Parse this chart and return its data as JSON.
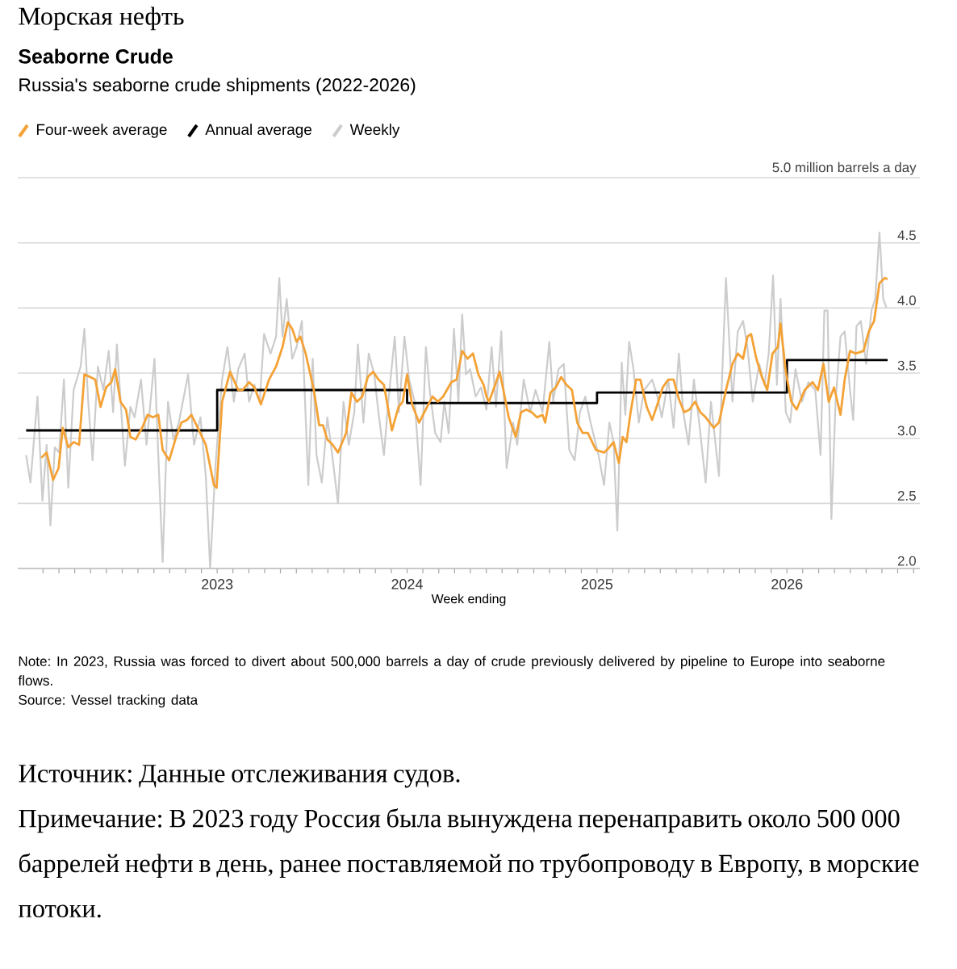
{
  "chart_data": {
    "type": "line",
    "title": "Seaborne Crude",
    "subtitle": "Russia's seaborne crude shipments (2022-2026)",
    "xlabel": "Week ending",
    "annotations": [
      "Морская нефть",
      "Note: In 2023, Russia was forced to divert about 500,000 barrels a day of crude previously delivered by pipeline to Europe into seaborne flows.",
      "Source: Vessel tracking data",
      "Источник: Данные отслеживания судов.",
      "Примечание: В 2023 году Россия была вынуждена перенаправить около 500 000 баррелей нефти в день, ранее поставляемой по трубопроводу в Европу, в морские потоки."
    ],
    "xlim": [
      2021.95,
      2026.7
    ],
    "ylim": [
      2.0,
      5.0
    ],
    "yticks": [
      {
        "value": 2,
        "label": "2.0"
      },
      2.5,
      {
        "value": 3,
        "label": "3.0"
      },
      3.5,
      {
        "value": 4,
        "label": "4.0"
      },
      4.5,
      {
        "value": 5,
        "label": "5.0 million barrels a day"
      }
    ],
    "xticks": [
      {
        "value": 2022.083,
        "label": null
      },
      {
        "value": 2022.167,
        "label": null
      },
      {
        "value": 2022.25,
        "label": null
      },
      {
        "value": 2022.333,
        "label": null
      },
      {
        "value": 2022.417,
        "label": null
      },
      {
        "value": 2022.5,
        "label": null
      },
      {
        "value": 2022.583,
        "label": null
      },
      {
        "value": 2022.667,
        "label": null
      },
      {
        "value": 2022.75,
        "label": null
      },
      {
        "value": 2022.833,
        "label": null
      },
      {
        "value": 2022.917,
        "label": null
      },
      2023,
      {
        "value": 2023.083,
        "label": null
      },
      {
        "value": 2023.167,
        "label": null
      },
      {
        "value": 2023.25,
        "label": null
      },
      {
        "value": 2023.333,
        "label": null
      },
      {
        "value": 2023.417,
        "label": null
      },
      {
        "value": 2023.5,
        "label": null
      },
      {
        "value": 2023.583,
        "label": null
      },
      {
        "value": 2023.667,
        "label": null
      },
      {
        "value": 2023.75,
        "label": null
      },
      {
        "value": 2023.833,
        "label": null
      },
      {
        "value": 2023.917,
        "label": null
      },
      2024,
      {
        "value": 2024.083,
        "label": null
      },
      {
        "value": 2024.167,
        "label": null
      },
      {
        "value": 2024.25,
        "label": null
      },
      {
        "value": 2024.333,
        "label": null
      },
      {
        "value": 2024.417,
        "label": null
      },
      {
        "value": 2024.5,
        "label": null
      },
      {
        "value": 2024.583,
        "label": null
      },
      {
        "value": 2024.667,
        "label": null
      },
      {
        "value": 2024.75,
        "label": null
      },
      {
        "value": 2024.833,
        "label": null
      },
      {
        "value": 2024.917,
        "label": null
      },
      2025,
      {
        "value": 2025.083,
        "label": null
      },
      {
        "value": 2025.167,
        "label": null
      },
      {
        "value": 2025.25,
        "label": null
      },
      {
        "value": 2025.333,
        "label": null
      },
      {
        "value": 2025.417,
        "label": null
      },
      {
        "value": 2025.5,
        "label": null
      },
      {
        "value": 2025.583,
        "label": null
      },
      {
        "value": 2025.667,
        "label": null
      },
      {
        "value": 2025.75,
        "label": null
      },
      {
        "value": 2025.833,
        "label": null
      },
      {
        "value": 2025.917,
        "label": null
      },
      2026,
      {
        "value": 2026.083,
        "label": null
      },
      {
        "value": 2026.167,
        "label": null
      },
      {
        "value": 2026.25,
        "label": null
      },
      {
        "value": 2026.333,
        "label": null
      },
      {
        "value": 2026.417,
        "label": null
      },
      {
        "value": 2026.5,
        "label": null
      },
      {
        "value": 2026.583,
        "label": null
      },
      {
        "value": 2026.667,
        "label": null
      }
    ],
    "grid": "y",
    "legend": "top left",
    "series": [
      {
        "name": "Four-week average",
        "color": "#f4a236",
        "x": [
          2022.074,
          2022.102,
          2022.136,
          2022.165,
          2022.187,
          2022.216,
          2022.244,
          2022.273,
          2022.301,
          2022.33,
          2022.358,
          2022.386,
          2022.415,
          2022.443,
          2022.463,
          2022.491,
          2022.52,
          2022.543,
          2022.571,
          2022.605,
          2022.634,
          2022.662,
          2022.69,
          2022.713,
          2022.747,
          2022.784,
          2022.812,
          2022.841,
          2022.864,
          2022.898,
          2022.94,
          2022.983,
          2022.997,
          2023.026,
          2023.068,
          2023.111,
          2023.134,
          2023.168,
          2023.196,
          2023.23,
          2023.273,
          2023.31,
          2023.344,
          2023.372,
          2023.395,
          2023.418,
          2023.438,
          2023.466,
          2023.509,
          2023.537,
          2023.557,
          2023.58,
          2023.608,
          2023.636,
          2023.679,
          2023.707,
          2023.736,
          2023.764,
          2023.793,
          2023.821,
          2023.849,
          2023.878,
          2023.92,
          2023.955,
          2023.977,
          2024.0,
          2024.026,
          2024.063,
          2024.105,
          2024.134,
          2024.162,
          2024.19,
          2024.233,
          2024.261,
          2024.29,
          2024.318,
          2024.347,
          2024.375,
          2024.403,
          2024.418,
          2024.431,
          2024.459,
          2024.487,
          2024.507,
          2024.535,
          2024.572,
          2024.6,
          2024.628,
          2024.656,
          2024.684,
          2024.713,
          2024.727,
          2024.755,
          2024.783,
          2024.811,
          2024.839,
          2024.868,
          2024.896,
          2024.924,
          2024.952,
          2024.994,
          2025.037,
          2025.065,
          2025.087,
          2025.115,
          2025.135,
          2025.155,
          2025.177,
          2025.206,
          2025.228,
          2025.262,
          2025.29,
          2025.318,
          2025.346,
          2025.375,
          2025.403,
          2025.431,
          2025.459,
          2025.487,
          2025.516,
          2025.544,
          2025.572,
          2025.614,
          2025.642,
          2025.679,
          2025.713,
          2025.741,
          2025.769,
          2025.792,
          2025.811,
          2025.839,
          2025.868,
          2025.896,
          2025.924,
          2025.952,
          2025.966,
          2025.994,
          2026.023,
          2026.051,
          2026.093,
          2026.135,
          2026.163,
          2026.192,
          2026.22,
          2026.248,
          2026.282,
          2026.304,
          2026.332,
          2026.361,
          2026.403,
          2026.431,
          2026.459,
          2026.487,
          2026.515,
          2026.53
        ],
        "values": [
          2.85,
          2.89,
          2.68,
          2.77,
          3.08,
          2.93,
          2.97,
          2.95,
          3.49,
          3.47,
          3.45,
          3.24,
          3.39,
          3.43,
          3.53,
          3.28,
          3.22,
          3.01,
          2.99,
          3.08,
          3.18,
          3.16,
          3.18,
          2.91,
          2.83,
          3.01,
          3.12,
          3.14,
          3.18,
          3.08,
          2.95,
          2.64,
          2.62,
          3.28,
          3.51,
          3.37,
          3.37,
          3.43,
          3.39,
          3.26,
          3.45,
          3.55,
          3.7,
          3.89,
          3.84,
          3.74,
          3.78,
          3.65,
          3.37,
          3.1,
          3.1,
          2.99,
          2.95,
          2.89,
          3.04,
          3.35,
          3.28,
          3.32,
          3.47,
          3.51,
          3.45,
          3.41,
          3.06,
          3.24,
          3.28,
          3.49,
          3.26,
          3.12,
          3.24,
          3.32,
          3.28,
          3.32,
          3.43,
          3.45,
          3.67,
          3.61,
          3.65,
          3.49,
          3.41,
          3.32,
          3.28,
          3.39,
          3.51,
          3.37,
          3.16,
          3.01,
          3.2,
          3.22,
          3.2,
          3.16,
          3.18,
          3.12,
          3.35,
          3.39,
          3.47,
          3.41,
          3.37,
          3.12,
          3.04,
          3.04,
          2.91,
          2.89,
          2.93,
          2.97,
          2.81,
          3.01,
          2.97,
          3.2,
          3.45,
          3.45,
          3.24,
          3.14,
          3.26,
          3.39,
          3.45,
          3.45,
          3.3,
          3.2,
          3.22,
          3.28,
          3.2,
          3.16,
          3.08,
          3.12,
          3.37,
          3.57,
          3.65,
          3.61,
          3.78,
          3.8,
          3.61,
          3.47,
          3.37,
          3.65,
          3.7,
          3.88,
          3.51,
          3.28,
          3.22,
          3.37,
          3.43,
          3.37,
          3.57,
          3.28,
          3.39,
          3.18,
          3.45,
          3.67,
          3.65,
          3.67,
          3.82,
          3.9,
          4.19,
          4.23,
          4.22
        ]
      },
      {
        "name": "Annual average",
        "color": "#000000",
        "type": "step",
        "x": [
          2021.994,
          2023.0,
          2024.0,
          2025.0,
          2026.0,
          2026.53
        ],
        "values": [
          3.06,
          3.37,
          3.27,
          3.35,
          3.6,
          3.6
        ]
      },
      {
        "name": "Weekly",
        "color": "#cccccc",
        "x": [
          2021.994,
          2022.017,
          2022.054,
          2022.08,
          2022.102,
          2022.122,
          2022.145,
          2022.168,
          2022.193,
          2022.216,
          2022.244,
          2022.281,
          2022.301,
          2022.321,
          2022.344,
          2022.372,
          2022.401,
          2022.429,
          2022.452,
          2022.472,
          2022.514,
          2022.543,
          2022.565,
          2022.599,
          2022.628,
          2022.67,
          2022.69,
          2022.713,
          2022.741,
          2022.77,
          2022.798,
          2022.847,
          2022.878,
          2022.912,
          2022.94,
          2022.963,
          2022.991,
          2023.026,
          2023.054,
          2023.088,
          2023.111,
          2023.145,
          2023.168,
          2023.196,
          2023.224,
          2023.247,
          2023.281,
          2023.31,
          2023.327,
          2023.344,
          2023.366,
          2023.395,
          2023.418,
          2023.446,
          2023.48,
          2023.503,
          2023.523,
          2023.551,
          2023.58,
          2023.599,
          2023.636,
          2023.665,
          2023.693,
          2023.722,
          2023.741,
          2023.77,
          2023.798,
          2023.827,
          2023.849,
          2023.878,
          2023.901,
          2023.935,
          2023.957,
          2023.986,
          2024.011,
          2024.04,
          2024.071,
          2024.099,
          2024.119,
          2024.148,
          2024.176,
          2024.196,
          2024.219,
          2024.247,
          2024.27,
          2024.29,
          2024.31,
          2024.332,
          2024.361,
          2024.389,
          2024.418,
          2024.445,
          2024.468,
          2024.496,
          2024.524,
          2024.558,
          2024.58,
          2024.614,
          2024.648,
          2024.676,
          2024.713,
          2024.749,
          2024.769,
          2024.797,
          2024.825,
          2024.854,
          2024.882,
          2024.91,
          2024.938,
          2024.966,
          2025.008,
          2025.037,
          2025.065,
          2025.087,
          2025.107,
          2025.13,
          2025.149,
          2025.169,
          2025.192,
          2025.22,
          2025.248,
          2025.29,
          2025.318,
          2025.341,
          2025.375,
          2025.403,
          2025.431,
          2025.454,
          2025.482,
          2025.51,
          2025.538,
          2025.572,
          2025.6,
          2025.642,
          2025.656,
          2025.679,
          2025.713,
          2025.741,
          2025.769,
          2025.792,
          2025.82,
          2025.854,
          2025.882,
          2025.904,
          2025.927,
          2025.947,
          2025.966,
          2025.994,
          2026.017,
          2026.045,
          2026.079,
          2026.113,
          2026.149,
          2026.177,
          2026.197,
          2026.214,
          2026.234,
          2026.256,
          2026.282,
          2026.304,
          2026.332,
          2026.349,
          2026.366,
          2026.389,
          2026.417,
          2026.445,
          2026.465,
          2026.487,
          2026.507,
          2026.524
        ],
        "values": [
          2.87,
          2.66,
          3.32,
          2.52,
          2.95,
          2.33,
          2.93,
          2.89,
          3.45,
          2.62,
          3.37,
          3.55,
          3.84,
          3.28,
          2.83,
          3.55,
          3.37,
          3.67,
          3.2,
          3.72,
          2.79,
          3.24,
          3.16,
          3.45,
          2.95,
          3.61,
          2.87,
          2.05,
          3.28,
          2.99,
          3.12,
          3.49,
          2.95,
          3.16,
          2.71,
          2.0,
          2.79,
          3.45,
          3.7,
          3.28,
          3.53,
          3.65,
          3.28,
          3.41,
          3.28,
          3.8,
          3.65,
          3.78,
          4.23,
          3.78,
          4.07,
          3.61,
          3.7,
          3.9,
          2.64,
          3.61,
          2.87,
          2.66,
          3.16,
          2.95,
          2.5,
          3.28,
          2.95,
          3.2,
          3.72,
          3.12,
          3.65,
          3.49,
          3.2,
          2.87,
          3.28,
          3.78,
          3.2,
          3.78,
          3.45,
          3.28,
          2.64,
          3.7,
          3.37,
          3.04,
          2.97,
          3.28,
          3.04,
          3.84,
          3.28,
          3.95,
          3.49,
          3.53,
          3.32,
          3.39,
          3.22,
          3.7,
          3.24,
          3.82,
          2.77,
          3.12,
          2.95,
          3.45,
          3.2,
          3.37,
          3.2,
          3.74,
          3.28,
          3.53,
          3.57,
          2.91,
          2.83,
          3.2,
          3.32,
          3.12,
          2.87,
          2.64,
          3.12,
          2.97,
          2.29,
          3.58,
          3.18,
          3.74,
          3.53,
          3.12,
          3.37,
          3.45,
          3.32,
          3.16,
          3.45,
          3.08,
          3.65,
          3.2,
          2.95,
          3.45,
          3.12,
          2.66,
          3.28,
          2.71,
          3.37,
          4.23,
          3.28,
          3.82,
          3.9,
          3.7,
          3.28,
          3.57,
          3.41,
          3.65,
          4.25,
          3.41,
          4.07,
          3.2,
          3.12,
          3.53,
          3.28,
          3.43,
          3.37,
          2.87,
          3.98,
          3.98,
          2.38,
          3.28,
          3.78,
          3.82,
          3.37,
          3.14,
          3.86,
          3.9,
          3.57,
          3.98,
          4.07,
          4.58,
          4.07,
          4.0
        ]
      }
    ]
  }
}
